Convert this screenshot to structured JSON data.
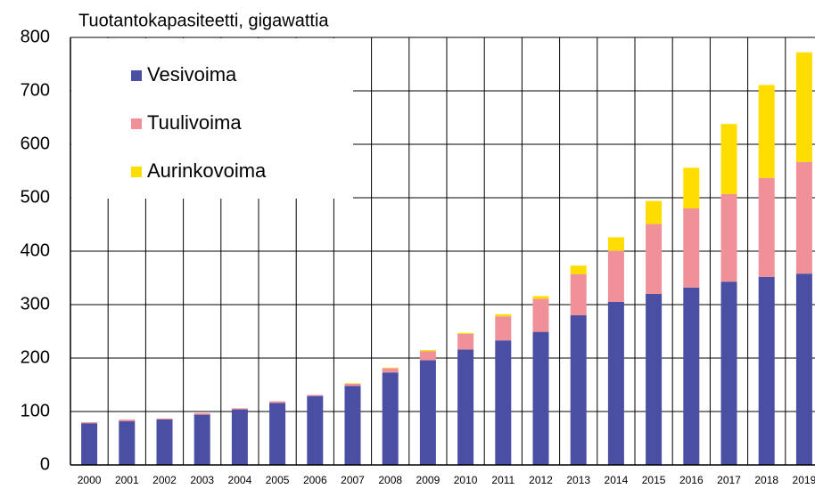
{
  "chart_data": {
    "type": "stacked_bar",
    "title": "Tuotantokapasiteetti, gigawattia",
    "categories": [
      "2000",
      "2001",
      "2002",
      "2003",
      "2004",
      "2005",
      "2006",
      "2007",
      "2008",
      "2009",
      "2010",
      "2011",
      "2012",
      "2013",
      "2014",
      "2015",
      "2016",
      "2017",
      "2018",
      "2019"
    ],
    "series": [
      {
        "name": "Vesivoima",
        "color": "#4a4fa3",
        "values": [
          78,
          82,
          85,
          94,
          104,
          116,
          129,
          148,
          173,
          196,
          216,
          233,
          249,
          280,
          305,
          320,
          332,
          343,
          352,
          358
        ]
      },
      {
        "name": "Tuulivoima",
        "color": "#f0919a",
        "values": [
          2,
          3,
          2,
          3,
          2,
          3,
          2,
          4,
          8,
          17,
          29,
          45,
          62,
          77,
          96,
          131,
          148,
          164,
          185,
          209
        ]
      },
      {
        "name": "Aurinkovoima",
        "color": "#ffdd00",
        "values": [
          0,
          0,
          0,
          0,
          0,
          0,
          0,
          1,
          1,
          2,
          2,
          4,
          5,
          16,
          25,
          43,
          76,
          131,
          174,
          205
        ]
      }
    ],
    "ylim": [
      0,
      800
    ],
    "yticks": [
      0,
      100,
      200,
      300,
      400,
      500,
      600,
      700,
      800
    ],
    "grid": true,
    "legend": "top-left"
  }
}
